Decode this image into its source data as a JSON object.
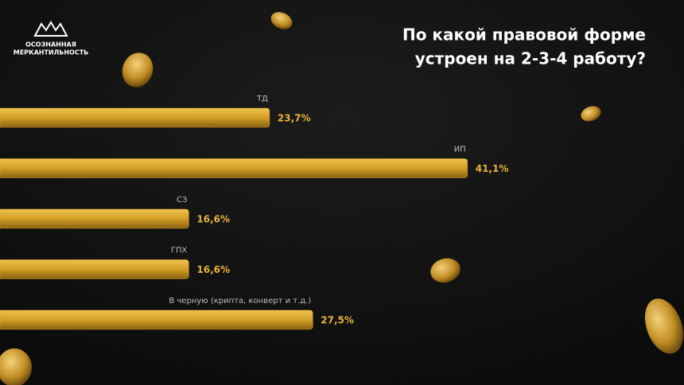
{
  "brand": [
    "ОСОЗНАННАЯ",
    "МЕРКАНТИЛЬНОСТЬ"
  ],
  "chart_data": {
    "type": "bar",
    "orientation": "horizontal",
    "title": [
      "По какой правовой форме",
      "устроен на 2-3-4 работу?"
    ],
    "categories": [
      "ТД",
      "ИП",
      "СЗ",
      "ГПХ",
      "В черную (крипта, конверт и т.д.)"
    ],
    "values": [
      23.7,
      41.1,
      16.6,
      16.6,
      27.5
    ],
    "value_labels": [
      "23,7%",
      "41,1%",
      "16,6%",
      "16,6%",
      "27,5%"
    ],
    "color": "#d9a52c"
  }
}
